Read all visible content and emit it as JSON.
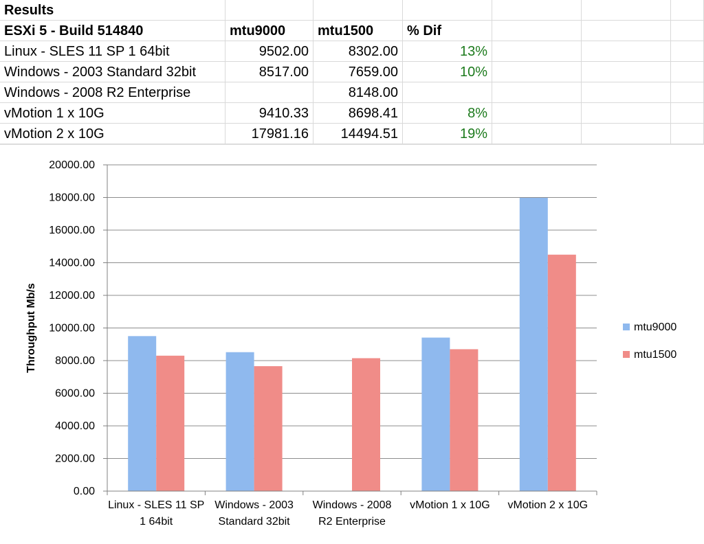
{
  "sheet": {
    "title": "Results",
    "headers": [
      "ESXi 5 - Build 514840",
      "mtu9000",
      "mtu1500",
      "% Dif"
    ],
    "rows": [
      {
        "label": "Linux - SLES 11 SP 1 64bit",
        "mtu9000": "9502.00",
        "mtu1500": "8302.00",
        "dif": "13%"
      },
      {
        "label": "Windows - 2003 Standard 32bit",
        "mtu9000": "8517.00",
        "mtu1500": "7659.00",
        "dif": "10%"
      },
      {
        "label": "Windows - 2008 R2 Enterprise",
        "mtu9000": "",
        "mtu1500": "8148.00",
        "dif": ""
      },
      {
        "label": "vMotion 1 x 10G",
        "mtu9000": "9410.33",
        "mtu1500": "8698.41",
        "dif": "8%"
      },
      {
        "label": "vMotion 2 x 10G",
        "mtu9000": "17981.16",
        "mtu1500": "14494.51",
        "dif": "19%"
      }
    ]
  },
  "chart_data": {
    "type": "bar",
    "categories": [
      [
        "Linux - SLES 11 SP",
        "1 64bit"
      ],
      [
        "Windows - 2003",
        "Standard 32bit"
      ],
      [
        "Windows - 2008",
        "R2 Enterprise"
      ],
      [
        "vMotion 1 x 10G"
      ],
      [
        "vMotion 2 x 10G"
      ]
    ],
    "series": [
      {
        "name": "mtu9000",
        "color": "#8fb9ee",
        "values": [
          9502.0,
          8517.0,
          null,
          9410.33,
          17981.16
        ]
      },
      {
        "name": "mtu1500",
        "color": "#f08c88",
        "values": [
          8302.0,
          7659.0,
          8148.0,
          8698.41,
          14494.51
        ]
      }
    ],
    "ylabel": "Throughput Mb/s",
    "ylim": [
      0,
      20000
    ],
    "yticks": [
      "0.00",
      "2000.00",
      "4000.00",
      "6000.00",
      "8000.00",
      "10000.00",
      "12000.00",
      "14000.00",
      "16000.00",
      "18000.00",
      "20000.00"
    ],
    "grid": true,
    "legend": "right"
  }
}
